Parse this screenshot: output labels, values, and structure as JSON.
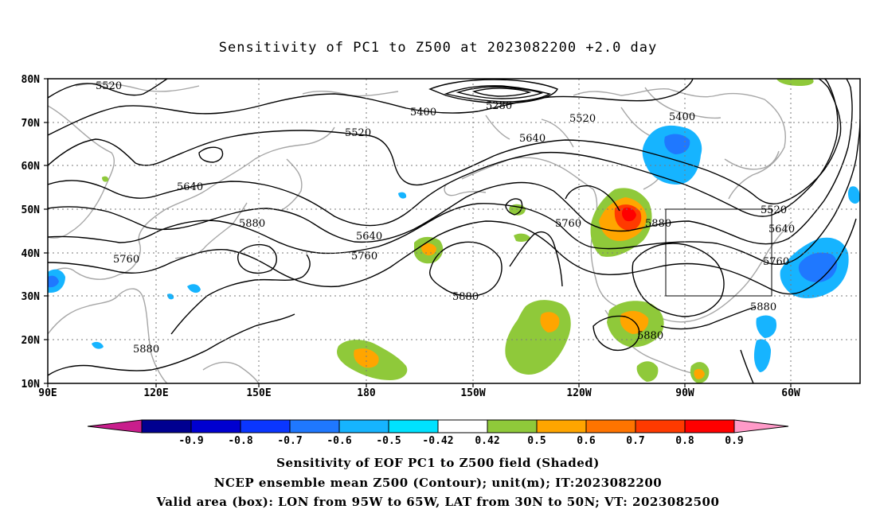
{
  "title": "Sensitivity of PC1 to Z500 at 2023082200 +2.0 day",
  "map": {
    "projection": "cylindrical",
    "lon_range": [
      "90E",
      "45W"
    ],
    "lat_range": [
      "10N",
      "80N"
    ],
    "lat_labels": [
      "80N",
      "70N",
      "60N",
      "50N",
      "40N",
      "30N",
      "20N",
      "10N"
    ],
    "lon_labels": [
      "90E",
      "120E",
      "150E",
      "180",
      "150W",
      "120W",
      "90W",
      "60W"
    ],
    "grid": "dotted",
    "valid_box": {
      "lon_min": "95W",
      "lon_max": "65W",
      "lat_min": "30N",
      "lat_max": "50N"
    },
    "contour_labels": [
      "5520",
      "5280",
      "5400",
      "5520",
      "5400",
      "5520",
      "5640",
      "5640",
      "5520",
      "5640",
      "5880",
      "5640",
      "5760",
      "5760",
      "5880",
      "5760",
      "5880",
      "5760",
      "5880",
      "5880",
      "5880"
    ]
  },
  "colorbar": {
    "ticks": [
      "-0.9",
      "-0.8",
      "-0.7",
      "-0.6",
      "-0.5",
      "-0.42",
      "0.42",
      "0.5",
      "0.6",
      "0.7",
      "0.8",
      "0.9"
    ],
    "colors": [
      "#000090",
      "#0000d0",
      "#0a36ff",
      "#1f78ff",
      "#16b4ff",
      "#00e2ff",
      "#ffffff",
      "#8fc93a",
      "#ffa500",
      "#ff7400",
      "#ff3a00",
      "#ff0000"
    ],
    "low_extend_color": "#c81e8c",
    "high_extend_color": "#ff9ac8"
  },
  "captions": {
    "line1": "Sensitivity of EOF PC1 to Z500 field (Shaded)",
    "line2": "NCEP ensemble mean Z500 (Contour); unit(m); IT:2023082200",
    "line3": "Valid area (box): LON from 95W to 65W, LAT from 30N to 50N; VT: 2023082500"
  }
}
